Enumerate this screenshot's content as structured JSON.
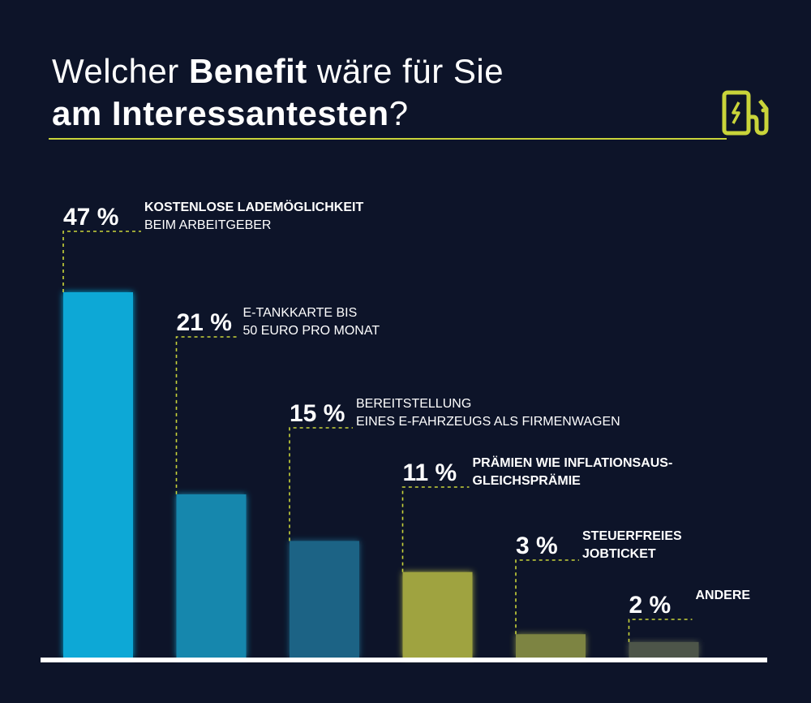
{
  "title": {
    "line1_light_a": "Welcher ",
    "line1_bold": "Benefit",
    "line1_light_b": " wäre für Sie",
    "line2_bold": "am Interessantesten",
    "line2_light": "?"
  },
  "icon": "ev-charging-station-icon",
  "colors": {
    "background": "#0d1429",
    "accent": "#c9d43a",
    "baseline": "#ffffff"
  },
  "chart_data": {
    "type": "bar",
    "title": "Welcher Benefit wäre für Sie am Interessantesten?",
    "xlabel": "",
    "ylabel": "",
    "ylim": [
      0,
      50
    ],
    "grid": false,
    "legend": "none",
    "categories": [
      "KOSTENLOSE LADEMÖGLICHKEIT BEIM ARBEITGEBER",
      "E-TANKKARTE BIS 50 EURO PRO MONAT",
      "BEREITSTELLUNG EINES E-FAHRZEUGS ALS FIRMENWAGEN",
      "PRÄMIEN WIE INFLATIONSAUSGLEICHSPRÄMIE",
      "STEUERFREIES JOBTICKET",
      "ANDERE"
    ],
    "values": [
      47,
      21,
      15,
      11,
      3,
      2
    ],
    "unit": "%",
    "bars": [
      {
        "pct_label": "47 %",
        "line1": "KOSTENLOSE LADEMÖGLICHKEIT",
        "line2": "BEIM ARBEITGEBER",
        "color": "#0ea8d6"
      },
      {
        "pct_label": "21 %",
        "line1": "E-TANKKARTE BIS",
        "line2": "50 EURO PRO MONAT",
        "color": "#1787ad"
      },
      {
        "pct_label": "15 %",
        "line1": "BEREITSTELLUNG",
        "line2": "EINES E-FAHRZEUGS ALS FIRMENWAGEN",
        "color": "#1a6485"
      },
      {
        "pct_label": "11 %",
        "line1": "PRÄMIEN WIE INFLATIONSAUS-",
        "line2": "GLEICHSPRÄMIE",
        "color": "#9fa33f"
      },
      {
        "pct_label": "3 %",
        "line1": "STEUERFREIES",
        "line2": "JOBTICKET",
        "color": "#7d8443"
      },
      {
        "pct_label": "2 %",
        "line1": "ANDERE",
        "line2": "",
        "color": "#4d5548"
      }
    ]
  }
}
